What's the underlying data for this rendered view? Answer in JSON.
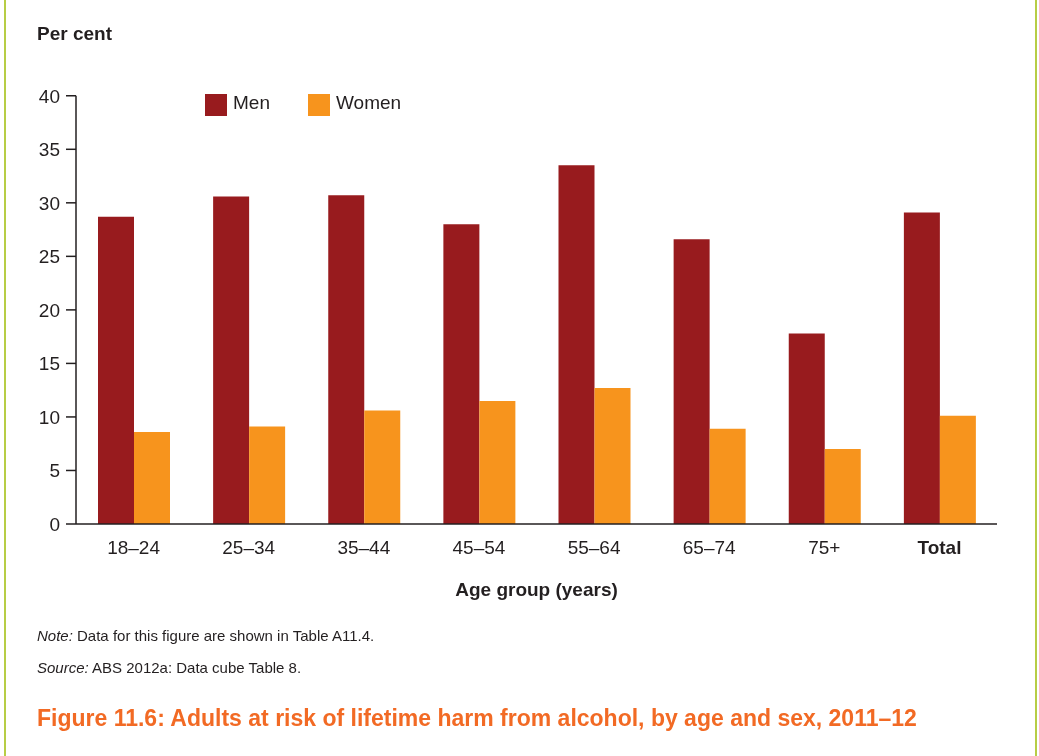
{
  "chart_data": {
    "type": "bar",
    "title": "Figure 11.6: Adults at risk of lifetime harm from alcohol, by age and sex, 2011–12",
    "xlabel": "Age group (years)",
    "ylabel": "Per cent",
    "annotations": [
      "Note: Data for this figure are shown in Table A11.4.",
      "Source: ABS 2012a: Data cube Table 8."
    ],
    "categories": [
      "18–24",
      "25–34",
      "35–44",
      "45–54",
      "55–64",
      "65–74",
      "75+",
      "Total"
    ],
    "series": [
      {
        "name": "Men",
        "color": "#981b1e",
        "values": [
          28.7,
          30.6,
          30.7,
          28.0,
          33.5,
          26.6,
          17.8,
          29.1
        ]
      },
      {
        "name": "Women",
        "color": "#f7941d",
        "values": [
          8.6,
          9.1,
          10.6,
          11.5,
          12.7,
          8.9,
          7.0,
          10.1
        ]
      }
    ],
    "ylim": [
      0,
      40
    ],
    "yticks": [
      0,
      5,
      10,
      15,
      20,
      25,
      30,
      35,
      40
    ],
    "grid": false,
    "legend": "top left"
  }
}
